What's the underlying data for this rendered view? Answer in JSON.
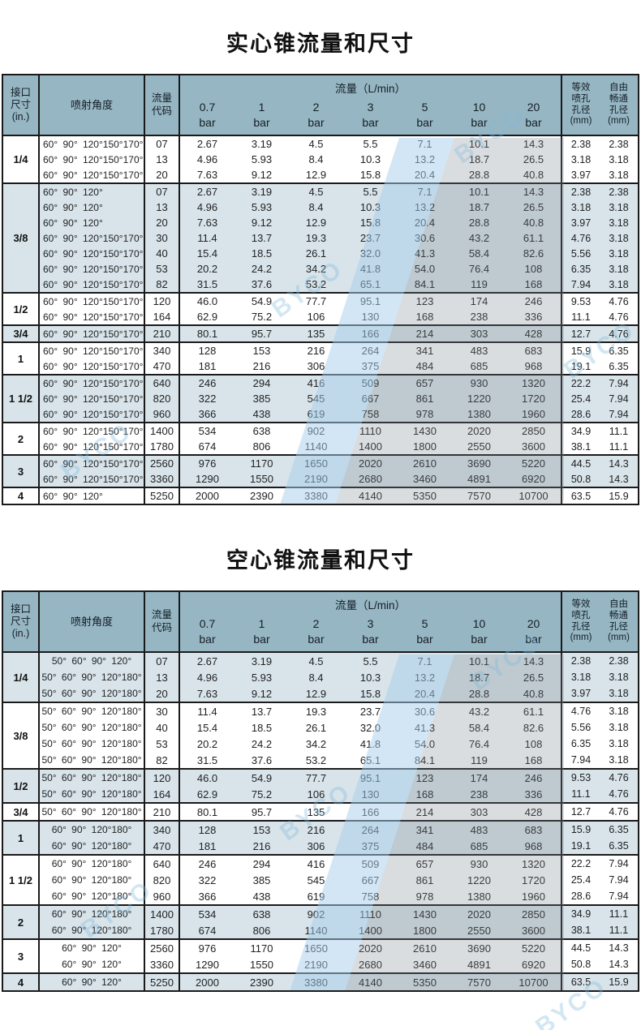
{
  "watermark": "BYCO",
  "colors": {
    "header_bg": "#96b6c3",
    "shaded_row": "#d8e4ea",
    "band_blue": "#a5cdeb",
    "band_gray": "#7a858c",
    "border": "#1a1a1a"
  },
  "header": {
    "size": "接口\n尺寸\n(in.)",
    "angle": "喷射角度",
    "code": "流量\n代码",
    "flow_group": "流量（L/min）",
    "pressures": [
      "0.7",
      "1",
      "2",
      "3",
      "5",
      "10",
      "20"
    ],
    "pressure_unit": "bar",
    "equiv": "等效\n喷孔\n孔径\n(mm)",
    "free": "自由\n畅通\n孔径\n(mm)"
  },
  "flows": {
    "07": {
      "flow": [
        "2.67",
        "3.19",
        "4.5",
        "5.5",
        "7.1",
        "10.1",
        "14.3"
      ],
      "equiv": "2.38",
      "free": "2.38"
    },
    "13": {
      "flow": [
        "4.96",
        "5.93",
        "8.4",
        "10.3",
        "13.2",
        "18.7",
        "26.5"
      ],
      "equiv": "3.18",
      "free": "3.18"
    },
    "20": {
      "flow": [
        "7.63",
        "9.12",
        "12.9",
        "15.8",
        "20.4",
        "28.8",
        "40.8"
      ],
      "equiv": "3.97",
      "free": "3.18"
    },
    "30": {
      "flow": [
        "11.4",
        "13.7",
        "19.3",
        "23.7",
        "30.6",
        "43.2",
        "61.1"
      ],
      "equiv": "4.76",
      "free": "3.18"
    },
    "40": {
      "flow": [
        "15.4",
        "18.5",
        "26.1",
        "32.0",
        "41.3",
        "58.4",
        "82.6"
      ],
      "equiv": "5.56",
      "free": "3.18"
    },
    "53": {
      "flow": [
        "20.2",
        "24.2",
        "34.2",
        "41.8",
        "54.0",
        "76.4",
        "108"
      ],
      "equiv": "6.35",
      "free": "3.18"
    },
    "82": {
      "flow": [
        "31.5",
        "37.6",
        "53.2",
        "65.1",
        "84.1",
        "119",
        "168"
      ],
      "equiv": "7.94",
      "free": "3.18"
    },
    "120": {
      "flow": [
        "46.0",
        "54.9",
        "77.7",
        "95.1",
        "123",
        "174",
        "246"
      ],
      "equiv": "9.53",
      "free": "4.76"
    },
    "164": {
      "flow": [
        "62.9",
        "75.2",
        "106",
        "130",
        "168",
        "238",
        "336"
      ],
      "equiv": "11.1",
      "free": "4.76"
    },
    "210": {
      "flow": [
        "80.1",
        "95.7",
        "135",
        "166",
        "214",
        "303",
        "428"
      ],
      "equiv": "12.7",
      "free": "4.76"
    },
    "340": {
      "flow": [
        "128",
        "153",
        "216",
        "264",
        "341",
        "483",
        "683"
      ],
      "equiv": "15.9",
      "free": "6.35"
    },
    "470": {
      "flow": [
        "181",
        "216",
        "306",
        "375",
        "484",
        "685",
        "968"
      ],
      "equiv": "19.1",
      "free": "6.35"
    },
    "640": {
      "flow": [
        "246",
        "294",
        "416",
        "509",
        "657",
        "930",
        "1320"
      ],
      "equiv": "22.2",
      "free": "7.94"
    },
    "820": {
      "flow": [
        "322",
        "385",
        "545",
        "667",
        "861",
        "1220",
        "1720"
      ],
      "equiv": "25.4",
      "free": "7.94"
    },
    "960": {
      "flow": [
        "366",
        "438",
        "619",
        "758",
        "978",
        "1380",
        "1960"
      ],
      "equiv": "28.6",
      "free": "7.94"
    },
    "1400": {
      "flow": [
        "534",
        "638",
        "902",
        "1110",
        "1430",
        "2020",
        "2850"
      ],
      "equiv": "34.9",
      "free": "11.1"
    },
    "1780": {
      "flow": [
        "674",
        "806",
        "1140",
        "1400",
        "1800",
        "2550",
        "3600"
      ],
      "equiv": "38.1",
      "free": "11.1"
    },
    "2560": {
      "flow": [
        "976",
        "1170",
        "1650",
        "2020",
        "2610",
        "3690",
        "5220"
      ],
      "equiv": "44.5",
      "free": "14.3"
    },
    "3360": {
      "flow": [
        "1290",
        "1550",
        "2190",
        "2680",
        "3460",
        "4891",
        "6920"
      ],
      "equiv": "50.8",
      "free": "14.3"
    },
    "5250": {
      "flow": [
        "2000",
        "2390",
        "3380",
        "4140",
        "5350",
        "7570",
        "10700"
      ],
      "equiv": "63.5",
      "free": "15.9"
    }
  },
  "tables": [
    {
      "title": "实心锥流量和尺寸",
      "groups": [
        {
          "size": "1/4",
          "shaded": false,
          "rows": [
            {
              "angle": "60° 90° 120°150°170°",
              "code": "07"
            },
            {
              "angle": "60° 90° 120°150°170°",
              "code": "13"
            },
            {
              "angle": "60° 90° 120°150°170°",
              "code": "20"
            }
          ]
        },
        {
          "size": "3/8",
          "shaded": true,
          "rows": [
            {
              "angle": "60° 90° 120°",
              "code": "07"
            },
            {
              "angle": "60° 90° 120°",
              "code": "13"
            },
            {
              "angle": "60° 90° 120°",
              "code": "20"
            },
            {
              "angle": "60° 90° 120°150°170°",
              "code": "30"
            },
            {
              "angle": "60° 90° 120°150°170°",
              "code": "40"
            },
            {
              "angle": "60° 90° 120°150°170°",
              "code": "53"
            },
            {
              "angle": "60° 90° 120°150°170°",
              "code": "82"
            }
          ]
        },
        {
          "size": "1/2",
          "shaded": false,
          "rows": [
            {
              "angle": "60° 90° 120°150°170°",
              "code": "120"
            },
            {
              "angle": "60° 90° 120°150°170°",
              "code": "164"
            }
          ]
        },
        {
          "size": "3/4",
          "shaded": true,
          "rows": [
            {
              "angle": "60° 90° 120°150°170°",
              "code": "210"
            }
          ]
        },
        {
          "size": "1",
          "shaded": false,
          "rows": [
            {
              "angle": "60° 90° 120°150°170°",
              "code": "340"
            },
            {
              "angle": "60° 90° 120°150°170°",
              "code": "470"
            }
          ]
        },
        {
          "size": "1 1/2",
          "shaded": true,
          "rows": [
            {
              "angle": "60° 90° 120°150°170°",
              "code": "640"
            },
            {
              "angle": "60° 90° 120°150°170°",
              "code": "820"
            },
            {
              "angle": "60° 90° 120°150°170°",
              "code": "960"
            }
          ]
        },
        {
          "size": "2",
          "shaded": false,
          "rows": [
            {
              "angle": "60° 90° 120°150°170°",
              "code": "1400"
            },
            {
              "angle": "60° 90° 120°150°170°",
              "code": "1780"
            }
          ]
        },
        {
          "size": "3",
          "shaded": true,
          "rows": [
            {
              "angle": "60° 90° 120°150°170°",
              "code": "2560"
            },
            {
              "angle": "60° 90° 120°150°170°",
              "code": "3360"
            }
          ]
        },
        {
          "size": "4",
          "shaded": false,
          "rows": [
            {
              "angle": "60° 90° 120°",
              "code": "5250"
            }
          ]
        }
      ]
    },
    {
      "title": "空心锥流量和尺寸",
      "groups": [
        {
          "size": "1/4",
          "shaded": true,
          "rows": [
            {
              "angle": "50° 60° 90° 120°",
              "code": "07"
            },
            {
              "angle": "50° 60° 90° 120°180°",
              "code": "13"
            },
            {
              "angle": "50° 60° 90° 120°180°",
              "code": "20"
            }
          ]
        },
        {
          "size": "3/8",
          "shaded": false,
          "rows": [
            {
              "angle": "50° 60° 90° 120°180°",
              "code": "30"
            },
            {
              "angle": "50° 60° 90° 120°180°",
              "code": "40"
            },
            {
              "angle": "50° 60° 90° 120°180°",
              "code": "53"
            },
            {
              "angle": "50° 60° 90° 120°180°",
              "code": "82"
            }
          ]
        },
        {
          "size": "1/2",
          "shaded": true,
          "rows": [
            {
              "angle": "50° 60° 90° 120°180°",
              "code": "120"
            },
            {
              "angle": "50° 60° 90° 120°180°",
              "code": "164"
            }
          ]
        },
        {
          "size": "3/4",
          "shaded": false,
          "rows": [
            {
              "angle": "50° 60° 90° 120°180°",
              "code": "210"
            }
          ]
        },
        {
          "size": "1",
          "shaded": true,
          "rows": [
            {
              "angle": "60° 90° 120°180°",
              "code": "340"
            },
            {
              "angle": "60° 90° 120°180°",
              "code": "470"
            }
          ]
        },
        {
          "size": "1 1/2",
          "shaded": false,
          "rows": [
            {
              "angle": "60° 90° 120°180°",
              "code": "640"
            },
            {
              "angle": "60° 90° 120°180°",
              "code": "820"
            },
            {
              "angle": "60° 90° 120°180°",
              "code": "960"
            }
          ]
        },
        {
          "size": "2",
          "shaded": true,
          "rows": [
            {
              "angle": "60° 90° 120°180°",
              "code": "1400"
            },
            {
              "angle": "60° 90° 120°180°",
              "code": "1780"
            }
          ]
        },
        {
          "size": "3",
          "shaded": false,
          "rows": [
            {
              "angle": "60° 90° 120°",
              "code": "2560"
            },
            {
              "angle": "60° 90° 120°",
              "code": "3360"
            }
          ]
        },
        {
          "size": "4",
          "shaded": true,
          "rows": [
            {
              "angle": "60° 90° 120°",
              "code": "5250"
            }
          ]
        }
      ]
    }
  ]
}
